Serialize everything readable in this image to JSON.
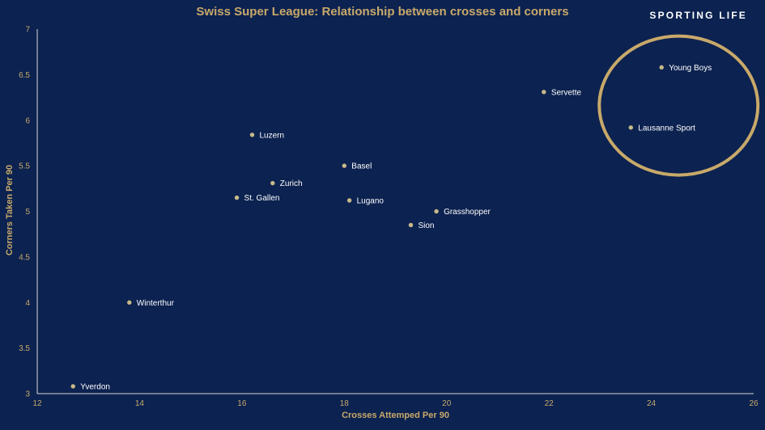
{
  "header": {
    "title": "Swiss Super League: Relationship between crosses and corners",
    "brand": "SPORTING LIFE"
  },
  "colors": {
    "background": "#0c2250",
    "accent": "#c8a96a",
    "point": "#c8b98a",
    "label": "#ffffff"
  },
  "chart_data": {
    "type": "scatter",
    "title": "Swiss Super League: Relationship between crosses and corners",
    "xlabel": "Crosses Attemped Per 90",
    "ylabel": "Corners Taken Per 90",
    "xlim": [
      12,
      26
    ],
    "ylim": [
      3,
      7
    ],
    "xticks": [
      12,
      14,
      16,
      18,
      20,
      22,
      24,
      26
    ],
    "yticks": [
      3,
      3.5,
      4,
      4.5,
      5,
      5.5,
      6,
      6.5,
      7
    ],
    "grid": false,
    "points": [
      {
        "label": "Young Boys",
        "x": 24.2,
        "y": 6.58
      },
      {
        "label": "Servette",
        "x": 21.9,
        "y": 6.31
      },
      {
        "label": "Lausanne Sport",
        "x": 23.6,
        "y": 5.92
      },
      {
        "label": "Luzern",
        "x": 16.2,
        "y": 5.84
      },
      {
        "label": "Basel",
        "x": 18.0,
        "y": 5.5
      },
      {
        "label": "Zurich",
        "x": 16.6,
        "y": 5.31
      },
      {
        "label": "St. Gallen",
        "x": 15.9,
        "y": 5.15
      },
      {
        "label": "Lugano",
        "x": 18.1,
        "y": 5.12
      },
      {
        "label": "Grasshopper",
        "x": 19.8,
        "y": 5.0
      },
      {
        "label": "Sion",
        "x": 19.3,
        "y": 4.85
      },
      {
        "label": "Winterthur",
        "x": 13.8,
        "y": 4.0
      },
      {
        "label": "Yverdon",
        "x": 12.7,
        "y": 3.08
      }
    ],
    "annotations": [
      {
        "type": "ellipse",
        "highlights": [
          "Young Boys",
          "Lausanne Sport"
        ]
      }
    ]
  }
}
